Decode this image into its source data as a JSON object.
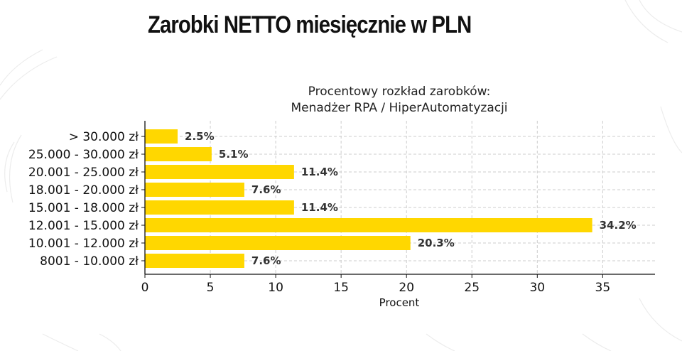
{
  "page": {
    "title": "Zarobki NETTO miesięcznie w PLN"
  },
  "colors": {
    "bar": "#FFD700",
    "grid": "#cccccc",
    "decor": "#ececec"
  },
  "chart_data": {
    "type": "bar",
    "orientation": "horizontal",
    "title": "Procentowy rozkład zarobków:",
    "subtitle": "Menadżer RPA / HiperAutomatyzacji",
    "xlabel": "Procent",
    "ylabel": "",
    "xlim": [
      0,
      39
    ],
    "xticks": [
      0,
      5,
      10,
      15,
      20,
      25,
      30,
      35
    ],
    "grid": true,
    "categories": [
      "> 30.000 zł",
      "25.000 - 30.000 zł",
      "20.001 - 25.000 zł",
      "18.001 - 20.000 zł",
      "15.001 - 18.000 zł",
      "12.001 - 15.000 zł",
      "10.001 - 12.000 zł",
      "8001 - 10.000 zł"
    ],
    "values": [
      2.5,
      5.1,
      11.4,
      7.6,
      11.4,
      34.2,
      20.3,
      7.6
    ],
    "data_labels": [
      "2.5%",
      "5.1%",
      "11.4%",
      "7.6%",
      "11.4%",
      "34.2%",
      "20.3%",
      "7.6%"
    ]
  }
}
